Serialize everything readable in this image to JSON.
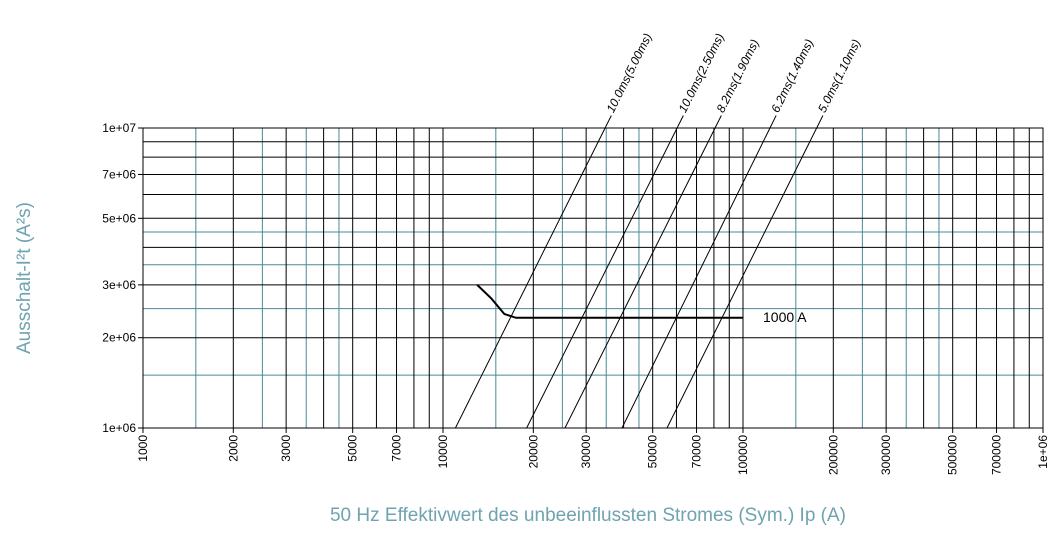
{
  "chart_data": {
    "type": "line",
    "xlabel": "50 Hz Effektivwert des unbeeinflussten Stromes (Sym.) Ip (A)",
    "ylabel": "Ausschalt-I²t (A²s)",
    "xscale": "log",
    "yscale": "log",
    "xlim": [
      1000,
      1000000
    ],
    "ylim": [
      1000000,
      10000000
    ],
    "xticks": [
      1000,
      2000,
      3000,
      5000,
      7000,
      10000,
      20000,
      30000,
      50000,
      70000,
      100000,
      200000,
      300000,
      500000,
      700000,
      {
        "value": 1000000,
        "label": "1e+06"
      }
    ],
    "yticks": [
      {
        "value": 1000000,
        "label": "1e+06"
      },
      {
        "value": 2000000,
        "label": "2e+06"
      },
      {
        "value": 3000000,
        "label": "3e+06"
      },
      {
        "value": 5000000,
        "label": "5e+06"
      },
      {
        "value": 7000000,
        "label": "7e+06"
      },
      {
        "value": 10000000,
        "label": "1e+07"
      }
    ],
    "grid": true,
    "grid_color": "#000000",
    "minor_grid_color": "#4a8a96",
    "xgrid": [
      2000,
      3000,
      4000,
      5000,
      6000,
      7000,
      8000,
      9000,
      10000,
      20000,
      30000,
      40000,
      50000,
      60000,
      70000,
      80000,
      90000,
      100000,
      200000,
      300000,
      400000,
      500000,
      600000,
      700000,
      800000,
      900000
    ],
    "xgrid_minor": [
      1500,
      2500,
      3500,
      4500,
      15000,
      25000,
      35000,
      45000,
      150000,
      250000,
      350000,
      450000
    ],
    "ygrid": [
      2000000,
      3000000,
      4000000,
      5000000,
      6000000,
      7000000,
      8000000,
      9000000
    ],
    "ygrid_minor": [
      1500000,
      2500000,
      3500000,
      4500000
    ],
    "series": [
      {
        "name": "1000 A",
        "color": "#000000",
        "x": [
          13000,
          14500,
          16000,
          17500,
          100000
        ],
        "values": [
          3000000,
          2700000,
          2400000,
          2330000,
          2330000
        ]
      },
      {
        "name": "10.0ms(5.00ms)",
        "color": "#000000",
        "x": [
          11000,
          34700
        ],
        "values": [
          1000000,
          10000000
        ]
      },
      {
        "name": "10.0ms(2.50ms)",
        "color": "#000000",
        "x": [
          19000,
          60300
        ],
        "values": [
          1000000,
          10000000
        ]
      },
      {
        "name": "8.2ms(1.90ms)",
        "color": "#000000",
        "x": [
          25500,
          80700
        ],
        "values": [
          1000000,
          10000000
        ]
      },
      {
        "name": "6.2ms(1.40ms)",
        "color": "#000000",
        "x": [
          39500,
          123000
        ],
        "values": [
          1000000,
          10000000
        ]
      },
      {
        "name": "5.0ms(1.10ms)",
        "color": "#000000",
        "x": [
          55800,
          176000
        ],
        "values": [
          1000000,
          10000000
        ]
      }
    ]
  }
}
